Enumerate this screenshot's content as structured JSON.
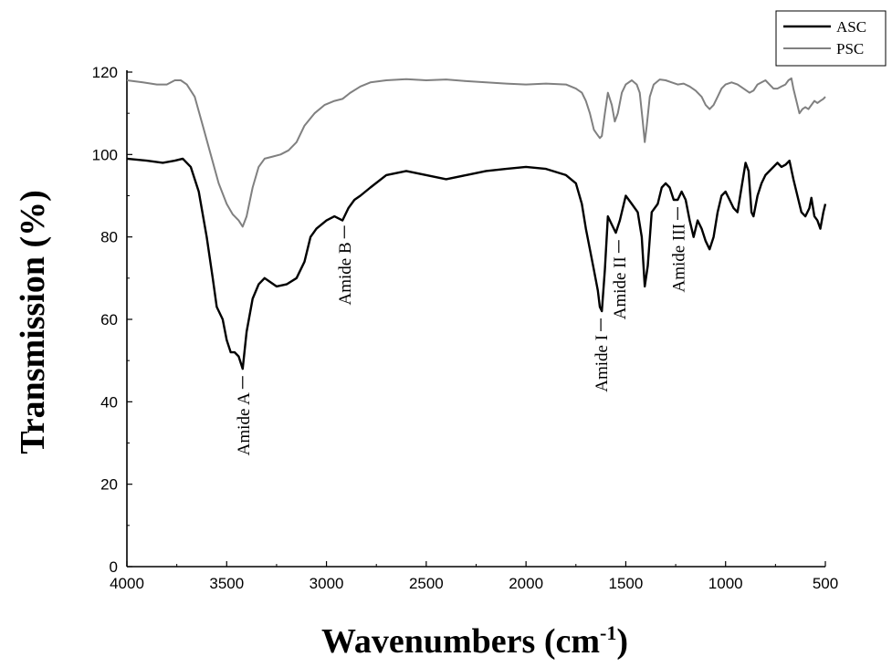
{
  "chart_data": {
    "type": "line",
    "xlabel": "Wavenumbers (cm",
    "xlabel_sup": "-1",
    "xlabel_close": ")",
    "ylabel": "Transmission (%)",
    "xlim": [
      4000,
      500
    ],
    "ylim": [
      0,
      120
    ],
    "x_ticks": [
      4000,
      3500,
      3000,
      2500,
      2000,
      1500,
      1000,
      500
    ],
    "y_ticks": [
      0,
      20,
      40,
      60,
      80,
      100,
      120
    ],
    "legend_position": "top-right",
    "grid": false,
    "series": [
      {
        "name": "ASC",
        "color": "#000000",
        "points": [
          [
            4000,
            99
          ],
          [
            3900,
            98.5
          ],
          [
            3820,
            98
          ],
          [
            3760,
            98.5
          ],
          [
            3720,
            99
          ],
          [
            3680,
            97
          ],
          [
            3640,
            91
          ],
          [
            3600,
            80
          ],
          [
            3570,
            70
          ],
          [
            3550,
            63
          ],
          [
            3520,
            60
          ],
          [
            3500,
            55
          ],
          [
            3480,
            52
          ],
          [
            3460,
            52
          ],
          [
            3440,
            51
          ],
          [
            3420,
            48
          ],
          [
            3400,
            57
          ],
          [
            3370,
            65
          ],
          [
            3340,
            68.5
          ],
          [
            3310,
            70
          ],
          [
            3280,
            69
          ],
          [
            3250,
            68
          ],
          [
            3200,
            68.5
          ],
          [
            3150,
            70
          ],
          [
            3110,
            74
          ],
          [
            3080,
            80
          ],
          [
            3050,
            82
          ],
          [
            3000,
            84
          ],
          [
            2960,
            85
          ],
          [
            2940,
            84.5
          ],
          [
            2920,
            84
          ],
          [
            2890,
            87
          ],
          [
            2860,
            89
          ],
          [
            2830,
            90
          ],
          [
            2780,
            92
          ],
          [
            2700,
            95
          ],
          [
            2600,
            96
          ],
          [
            2500,
            95
          ],
          [
            2400,
            94
          ],
          [
            2300,
            95
          ],
          [
            2200,
            96
          ],
          [
            2100,
            96.5
          ],
          [
            2000,
            97
          ],
          [
            1900,
            96.5
          ],
          [
            1800,
            95
          ],
          [
            1750,
            93
          ],
          [
            1720,
            88
          ],
          [
            1700,
            82
          ],
          [
            1680,
            77
          ],
          [
            1660,
            72
          ],
          [
            1640,
            67
          ],
          [
            1630,
            63
          ],
          [
            1620,
            62
          ],
          [
            1605,
            72
          ],
          [
            1590,
            85
          ],
          [
            1570,
            83
          ],
          [
            1550,
            81
          ],
          [
            1530,
            84
          ],
          [
            1500,
            90
          ],
          [
            1470,
            88
          ],
          [
            1440,
            86
          ],
          [
            1420,
            80
          ],
          [
            1405,
            68
          ],
          [
            1390,
            73
          ],
          [
            1370,
            86
          ],
          [
            1340,
            88
          ],
          [
            1320,
            92
          ],
          [
            1300,
            93
          ],
          [
            1280,
            92
          ],
          [
            1260,
            89
          ],
          [
            1240,
            89
          ],
          [
            1220,
            91
          ],
          [
            1200,
            89
          ],
          [
            1180,
            84
          ],
          [
            1160,
            80
          ],
          [
            1140,
            84
          ],
          [
            1120,
            82
          ],
          [
            1100,
            79
          ],
          [
            1080,
            77
          ],
          [
            1060,
            80
          ],
          [
            1040,
            86
          ],
          [
            1020,
            90
          ],
          [
            1000,
            91
          ],
          [
            980,
            89
          ],
          [
            960,
            87
          ],
          [
            940,
            86
          ],
          [
            920,
            92
          ],
          [
            900,
            98
          ],
          [
            885,
            96
          ],
          [
            870,
            86
          ],
          [
            860,
            85
          ],
          [
            840,
            90
          ],
          [
            820,
            93
          ],
          [
            800,
            95
          ],
          [
            780,
            96
          ],
          [
            760,
            97
          ],
          [
            740,
            98
          ],
          [
            720,
            97
          ],
          [
            700,
            97.5
          ],
          [
            680,
            98.5
          ],
          [
            660,
            94
          ],
          [
            640,
            90
          ],
          [
            620,
            86
          ],
          [
            600,
            85
          ],
          [
            580,
            87
          ],
          [
            570,
            89.5
          ],
          [
            555,
            85
          ],
          [
            540,
            84
          ],
          [
            525,
            82
          ],
          [
            510,
            86
          ],
          [
            500,
            88
          ]
        ]
      },
      {
        "name": "PSC",
        "color": "#808080",
        "points": [
          [
            4000,
            118
          ],
          [
            3920,
            117.5
          ],
          [
            3850,
            117
          ],
          [
            3800,
            117
          ],
          [
            3760,
            118
          ],
          [
            3730,
            118
          ],
          [
            3700,
            117
          ],
          [
            3660,
            114
          ],
          [
            3620,
            107
          ],
          [
            3580,
            100
          ],
          [
            3540,
            93
          ],
          [
            3500,
            88
          ],
          [
            3470,
            85.5
          ],
          [
            3440,
            84
          ],
          [
            3420,
            82.5
          ],
          [
            3400,
            85
          ],
          [
            3370,
            92
          ],
          [
            3340,
            97
          ],
          [
            3310,
            99
          ],
          [
            3270,
            99.5
          ],
          [
            3230,
            100
          ],
          [
            3190,
            101
          ],
          [
            3150,
            103
          ],
          [
            3110,
            107
          ],
          [
            3060,
            110
          ],
          [
            3010,
            112
          ],
          [
            2960,
            113
          ],
          [
            2920,
            113.5
          ],
          [
            2880,
            115
          ],
          [
            2830,
            116.5
          ],
          [
            2780,
            117.5
          ],
          [
            2700,
            118
          ],
          [
            2600,
            118.3
          ],
          [
            2500,
            118
          ],
          [
            2400,
            118.2
          ],
          [
            2300,
            117.8
          ],
          [
            2200,
            117.5
          ],
          [
            2100,
            117.2
          ],
          [
            2000,
            117
          ],
          [
            1900,
            117.2
          ],
          [
            1800,
            117
          ],
          [
            1750,
            116
          ],
          [
            1720,
            115
          ],
          [
            1700,
            113
          ],
          [
            1680,
            110
          ],
          [
            1660,
            106
          ],
          [
            1645,
            105
          ],
          [
            1630,
            104
          ],
          [
            1620,
            104.5
          ],
          [
            1605,
            110
          ],
          [
            1590,
            115
          ],
          [
            1570,
            112
          ],
          [
            1555,
            108
          ],
          [
            1540,
            110
          ],
          [
            1520,
            115
          ],
          [
            1500,
            117
          ],
          [
            1470,
            118
          ],
          [
            1445,
            117
          ],
          [
            1430,
            115
          ],
          [
            1415,
            108
          ],
          [
            1405,
            103
          ],
          [
            1395,
            107
          ],
          [
            1380,
            114
          ],
          [
            1360,
            117
          ],
          [
            1330,
            118.2
          ],
          [
            1300,
            118
          ],
          [
            1270,
            117.5
          ],
          [
            1240,
            117
          ],
          [
            1210,
            117.2
          ],
          [
            1180,
            116.5
          ],
          [
            1150,
            115.5
          ],
          [
            1120,
            114
          ],
          [
            1100,
            112
          ],
          [
            1080,
            111
          ],
          [
            1060,
            112
          ],
          [
            1040,
            114
          ],
          [
            1020,
            116
          ],
          [
            1000,
            117
          ],
          [
            970,
            117.5
          ],
          [
            940,
            117
          ],
          [
            910,
            116
          ],
          [
            880,
            115
          ],
          [
            860,
            115.5
          ],
          [
            840,
            117
          ],
          [
            820,
            117.5
          ],
          [
            800,
            118
          ],
          [
            780,
            117
          ],
          [
            760,
            116
          ],
          [
            740,
            116
          ],
          [
            720,
            116.5
          ],
          [
            700,
            117
          ],
          [
            685,
            118
          ],
          [
            670,
            118.5
          ],
          [
            660,
            116
          ],
          [
            645,
            113
          ],
          [
            630,
            110
          ],
          [
            615,
            111
          ],
          [
            600,
            111.5
          ],
          [
            585,
            111
          ],
          [
            570,
            112
          ],
          [
            555,
            113
          ],
          [
            540,
            112.5
          ],
          [
            525,
            113
          ],
          [
            510,
            113.5
          ],
          [
            500,
            114
          ]
        ]
      }
    ],
    "annotations": [
      {
        "text": "Amide A",
        "x": 3420,
        "y": 48
      },
      {
        "text": "Amide B",
        "x": 2910,
        "y": 84.5
      },
      {
        "text": "Amide I",
        "x": 1625,
        "y": 62
      },
      {
        "text": "Amide II",
        "x": 1535,
        "y": 81
      },
      {
        "text": "Amide III",
        "x": 1240,
        "y": 89
      }
    ]
  }
}
